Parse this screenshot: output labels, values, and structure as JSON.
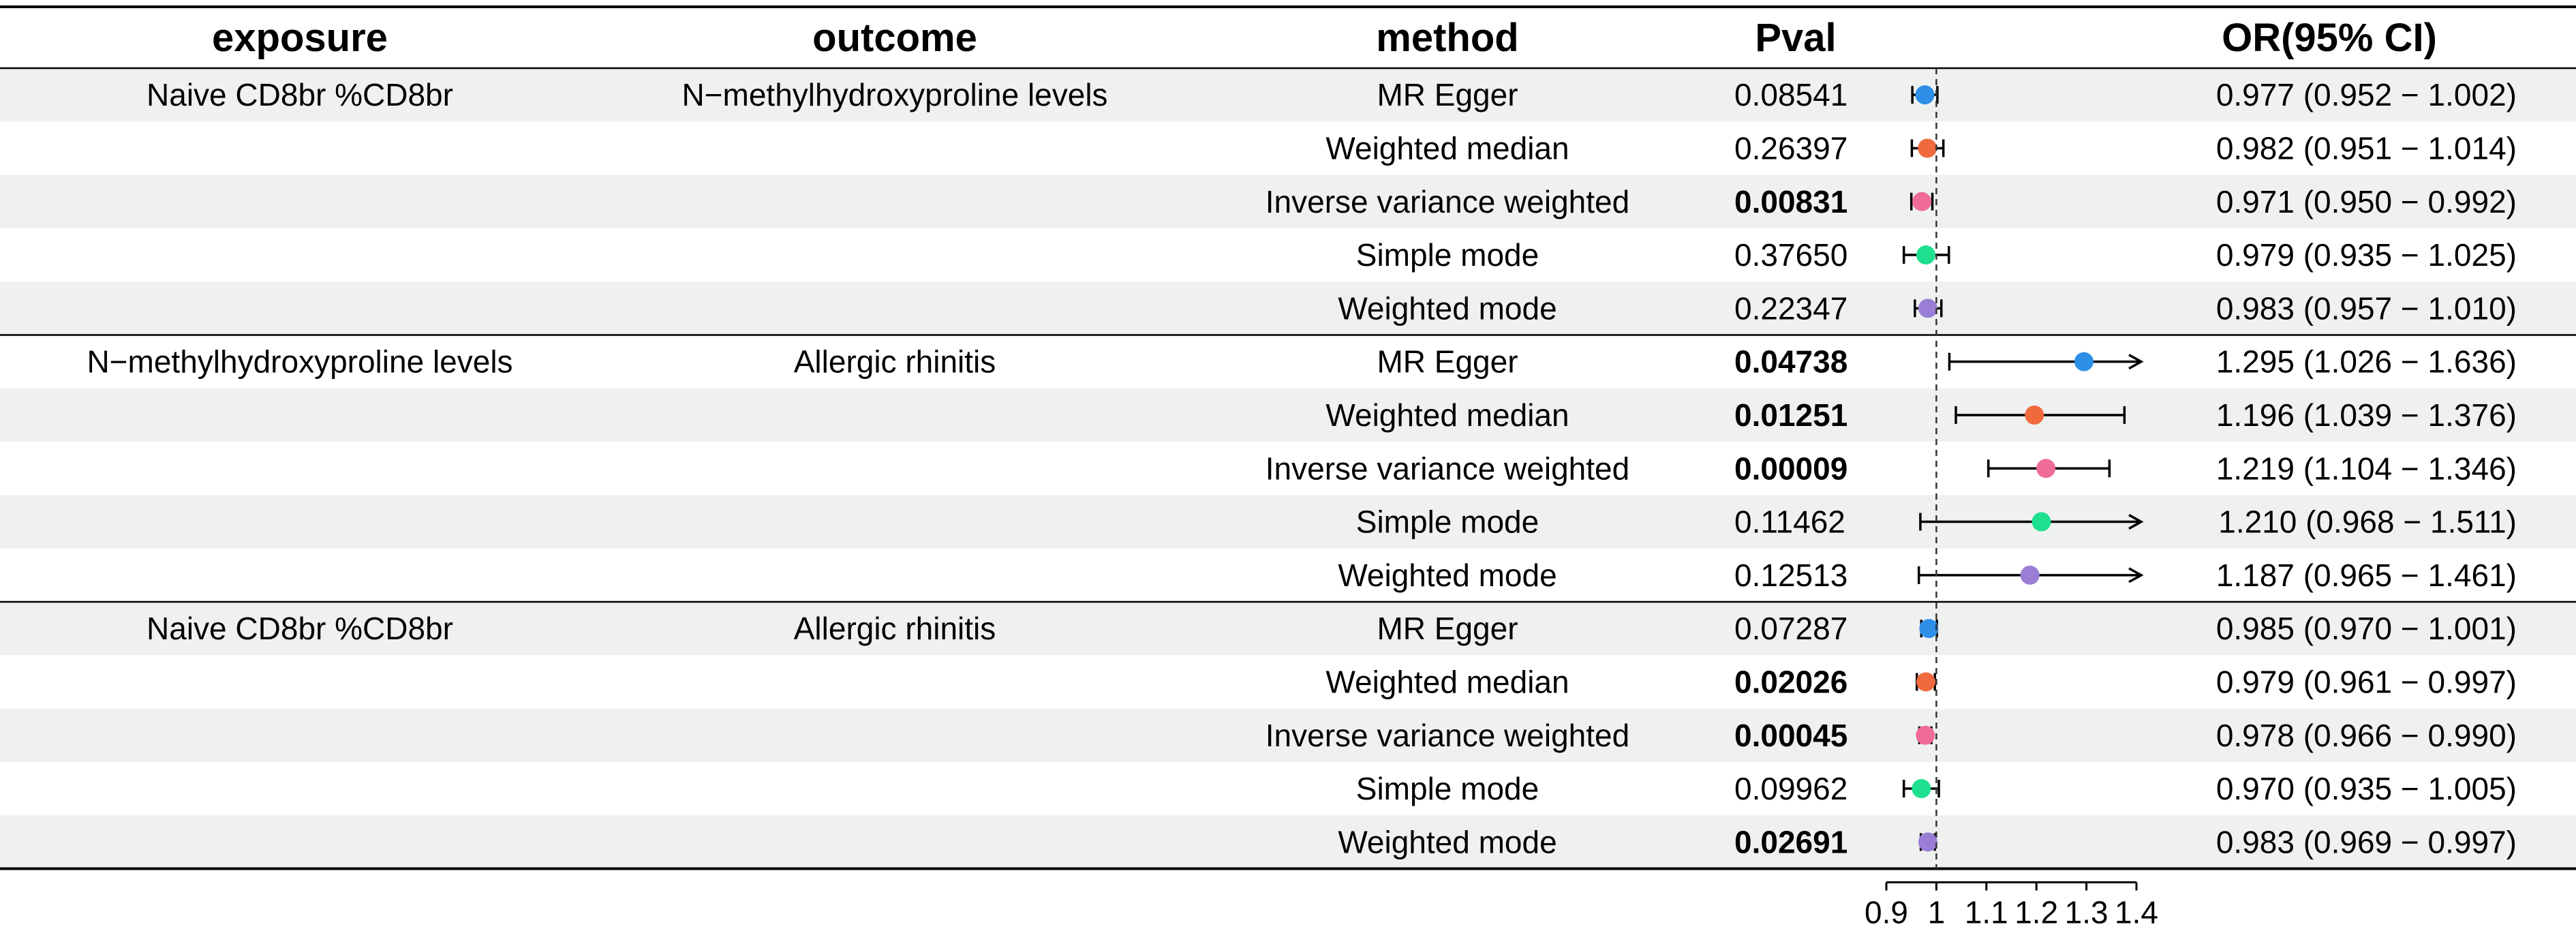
{
  "headers": {
    "exposure": "exposure",
    "outcome": "outcome",
    "method": "method",
    "pval": "Pval",
    "or": "OR(95% CI)"
  },
  "colors": {
    "row_shade": "#eff1f1",
    "rule": "#000000",
    "methods": {
      "MR Egger": "#2e8fe8",
      "Weighted median": "#f06a3e",
      "Inverse variance weighted": "#ef6c9a",
      "Simple mode": "#1ee08f",
      "Weighted mode": "#9a7ed6"
    }
  },
  "chart_data": {
    "type": "forest",
    "title": "",
    "xlabel": "",
    "reference_line": 1,
    "xlim": [
      0.9,
      1.4
    ],
    "x_ticks": [
      "0.9",
      "1",
      "1.1",
      "1.2",
      "1.3",
      "1.4"
    ],
    "x_tick_values": [
      0.9,
      1,
      1.1,
      1.2,
      1.3,
      1.4
    ],
    "groups": [
      {
        "exposure": "Naive  CD8br %CD8br",
        "outcome": "N−methylhydroxyproline levels",
        "rows": [
          {
            "method": "MR Egger",
            "pval": "0.08541",
            "significant": false,
            "or": 0.977,
            "lo": 0.952,
            "hi": 1.002,
            "label": "0.977 (0.952 − 1.002)"
          },
          {
            "method": "Weighted median",
            "pval": "0.26397",
            "significant": false,
            "or": 0.982,
            "lo": 0.951,
            "hi": 1.014,
            "label": "0.982 (0.951 − 1.014)"
          },
          {
            "method": "Inverse variance weighted",
            "pval": "0.00831",
            "significant": true,
            "or": 0.971,
            "lo": 0.95,
            "hi": 0.992,
            "label": "0.971 (0.950 − 0.992)"
          },
          {
            "method": "Simple mode",
            "pval": "0.37650",
            "significant": false,
            "or": 0.979,
            "lo": 0.935,
            "hi": 1.025,
            "label": "0.979 (0.935 − 1.025)"
          },
          {
            "method": "Weighted mode",
            "pval": "0.22347",
            "significant": false,
            "or": 0.983,
            "lo": 0.957,
            "hi": 1.01,
            "label": "0.983 (0.957 − 1.010)"
          }
        ]
      },
      {
        "exposure": "N−methylhydroxyproline levels",
        "outcome": "Allergic rhinitis",
        "rows": [
          {
            "method": "MR Egger",
            "pval": "0.04738",
            "significant": true,
            "or": 1.295,
            "lo": 1.026,
            "hi": 1.636,
            "label": "1.295 (1.026 − 1.636)"
          },
          {
            "method": "Weighted median",
            "pval": "0.01251",
            "significant": true,
            "or": 1.196,
            "lo": 1.039,
            "hi": 1.376,
            "label": "1.196 (1.039 − 1.376)"
          },
          {
            "method": "Inverse variance weighted",
            "pval": "0.00009",
            "significant": true,
            "or": 1.219,
            "lo": 1.104,
            "hi": 1.346,
            "label": "1.219 (1.104 − 1.346)"
          },
          {
            "method": "Simple mode",
            "pval": "0.11462",
            "significant": false,
            "or": 1.21,
            "lo": 0.968,
            "hi": 1.511,
            "label": "1.210 (0.968 − 1.511)"
          },
          {
            "method": "Weighted mode",
            "pval": "0.12513",
            "significant": false,
            "or": 1.187,
            "lo": 0.965,
            "hi": 1.461,
            "label": "1.187 (0.965 − 1.461)"
          }
        ]
      },
      {
        "exposure": "Naive  CD8br %CD8br",
        "outcome": "Allergic rhinitis",
        "rows": [
          {
            "method": "MR Egger",
            "pval": "0.07287",
            "significant": false,
            "or": 0.985,
            "lo": 0.97,
            "hi": 1.001,
            "label": "0.985 (0.970 − 1.001)"
          },
          {
            "method": "Weighted median",
            "pval": "0.02026",
            "significant": true,
            "or": 0.979,
            "lo": 0.961,
            "hi": 0.997,
            "label": "0.979 (0.961 − 0.997)"
          },
          {
            "method": "Inverse variance weighted",
            "pval": "0.00045",
            "significant": true,
            "or": 0.978,
            "lo": 0.966,
            "hi": 0.99,
            "label": "0.978 (0.966 − 0.990)"
          },
          {
            "method": "Simple mode",
            "pval": "0.09962",
            "significant": false,
            "or": 0.97,
            "lo": 0.935,
            "hi": 1.005,
            "label": "0.970 (0.935 − 1.005)"
          },
          {
            "method": "Weighted mode",
            "pval": "0.02691",
            "significant": true,
            "or": 0.983,
            "lo": 0.969,
            "hi": 0.997,
            "label": "0.983 (0.969 − 0.997)"
          }
        ]
      }
    ]
  }
}
